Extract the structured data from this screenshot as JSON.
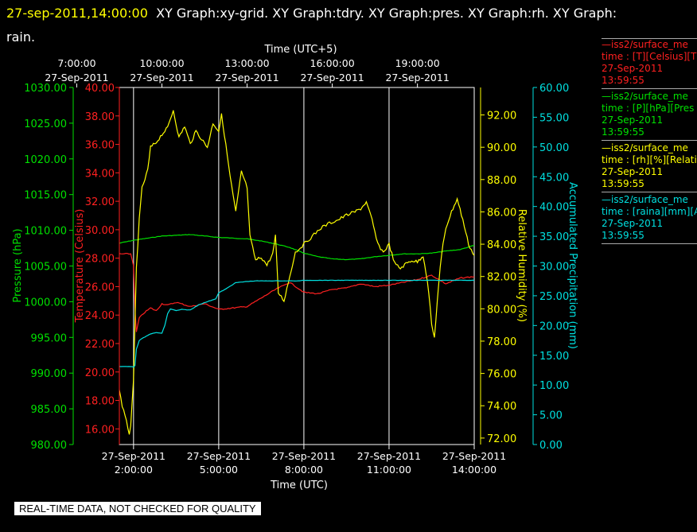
{
  "header": {
    "timestamp": "27-sep-2011,14:00:00",
    "graphs": "XY Graph:xy-grid.  XY Graph:tdry.  XY Graph:pres.  XY Graph:rh.  XY Graph:",
    "graphs_line2": "rain."
  },
  "legend": [
    {
      "line1": "—iss2/surface_me",
      "line2": "time : [T][Celsius][T",
      "date": "27-Sep-2011",
      "time": "13:59:55",
      "color": "#ff2020"
    },
    {
      "line1": "—iss2/surface_me",
      "line2": "time : [P][hPa][Pres",
      "date": "27-Sep-2011",
      "time": "13:59:55",
      "color": "#00e000"
    },
    {
      "line1": "—iss2/surface_me",
      "line2": "time : [rh][%][Relati",
      "date": "27-Sep-2011",
      "time": "13:59:55",
      "color": "#ffff00"
    },
    {
      "line1": "—iss2/surface_me",
      "line2": "time : [raina][mm][A",
      "date": "27-Sep-2011",
      "time": "13:59:55",
      "color": "#00e0e0"
    }
  ],
  "footer": "REAL-TIME DATA, NOT CHECKED FOR QUALITY",
  "chart_data": {
    "type": "line",
    "top_axis": {
      "label": "Time (UTC+5)",
      "ticks": [
        {
          "x": 5,
          "time": "7:00:00",
          "date": "27-Sep-2011"
        },
        {
          "x": 8,
          "time": "10:00:00",
          "date": "27-Sep-2011"
        },
        {
          "x": 11,
          "time": "13:00:00",
          "date": "27-Sep-2011"
        },
        {
          "x": 14,
          "time": "16:00:00",
          "date": "27-Sep-2011"
        },
        {
          "x": 17,
          "time": "19:00:00",
          "date": "27-Sep-2011"
        }
      ]
    },
    "bottom_axis": {
      "label": "Time (UTC)",
      "xlim": [
        1.5,
        14.0
      ],
      "ticks": [
        {
          "x": 2,
          "time": "2:00:00",
          "date": "27-Sep-2011"
        },
        {
          "x": 5,
          "time": "5:00:00",
          "date": "27-Sep-2011"
        },
        {
          "x": 8,
          "time": "8:00:00",
          "date": "27-Sep-2011"
        },
        {
          "x": 11,
          "time": "11:00:00",
          "date": "27-Sep-2011"
        },
        {
          "x": 14,
          "time": "14:00:00",
          "date": "27-Sep-2011"
        }
      ]
    },
    "axes": {
      "pressure": {
        "label": "Pressure (hPa)",
        "color": "#00e000",
        "ylim": [
          980,
          1030
        ],
        "ticks": [
          "980.00",
          "985.00",
          "990.00",
          "995.00",
          "1000.00",
          "1005.00",
          "1010.00",
          "1015.00",
          "1020.00",
          "1025.00",
          "1030.00"
        ]
      },
      "temperature": {
        "label": "Temperature (Celsius)",
        "color": "#ff2020",
        "ylim": [
          14.9,
          40
        ],
        "ticks": [
          "16.00",
          "18.00",
          "20.00",
          "22.00",
          "24.00",
          "26.00",
          "28.00",
          "30.00",
          "32.00",
          "34.00",
          "36.00",
          "38.00",
          "40.00"
        ]
      },
      "rh": {
        "label": "Relative Humidity (%)",
        "color": "#ffff00",
        "ylim": [
          71.6,
          93.7
        ],
        "ticks": [
          "72.00",
          "74.00",
          "76.00",
          "78.00",
          "80.00",
          "82.00",
          "84.00",
          "86.00",
          "88.00",
          "90.00",
          "92.00"
        ]
      },
      "rain": {
        "label": "Accumulated Precipitation (mm)",
        "color": "#00e0e0",
        "ylim": [
          0,
          60
        ],
        "ticks": [
          "0.00",
          "5.00",
          "10.00",
          "15.00",
          "20.00",
          "25.00",
          "30.00",
          "35.00",
          "40.00",
          "45.00",
          "50.00",
          "55.00",
          "60.00"
        ]
      }
    },
    "grid": true,
    "series": [
      {
        "name": "Pressure (hPa)",
        "axis": "pressure",
        "color": "#00e000",
        "x": [
          1.5,
          2.0,
          2.5,
          3.0,
          3.5,
          4.0,
          4.5,
          5.0,
          5.5,
          6.0,
          6.5,
          7.0,
          7.5,
          8.0,
          8.5,
          9.0,
          9.5,
          10.0,
          10.5,
          11.0,
          11.5,
          12.0,
          12.5,
          13.0,
          13.5,
          14.0
        ],
        "y": [
          1008.2,
          1008.6,
          1008.9,
          1009.2,
          1009.3,
          1009.4,
          1009.2,
          1009.0,
          1008.9,
          1008.8,
          1008.5,
          1008.1,
          1007.6,
          1006.8,
          1006.3,
          1006.0,
          1005.9,
          1006.0,
          1006.3,
          1006.5,
          1006.7,
          1006.7,
          1006.8,
          1007.1,
          1007.3,
          1007.9
        ]
      },
      {
        "name": "Temperature (Celsius)",
        "axis": "temperature",
        "color": "#ff2020",
        "x": [
          1.5,
          1.9,
          2.0,
          2.05,
          2.1,
          2.2,
          2.4,
          2.6,
          2.8,
          3.0,
          3.2,
          3.5,
          4.0,
          4.5,
          5.0,
          5.5,
          6.0,
          6.5,
          7.0,
          7.5,
          8.0,
          8.5,
          9.0,
          9.5,
          10.0,
          10.5,
          11.0,
          11.5,
          12.0,
          12.5,
          13.0,
          13.5,
          14.0
        ],
        "y": [
          28.3,
          28.3,
          27.5,
          24.5,
          22.8,
          23.8,
          24.2,
          24.5,
          24.3,
          24.8,
          24.7,
          24.9,
          24.6,
          24.8,
          24.4,
          24.5,
          24.6,
          25.2,
          25.8,
          26.3,
          25.6,
          25.5,
          25.8,
          25.9,
          26.2,
          26.0,
          26.1,
          26.3,
          26.5,
          26.8,
          26.2,
          26.6,
          26.7
        ]
      },
      {
        "name": "Relative Humidity (%)",
        "axis": "rh",
        "color": "#ffff00",
        "x": [
          1.5,
          1.6,
          1.75,
          1.85,
          1.9,
          2.0,
          2.05,
          2.1,
          2.2,
          2.3,
          2.4,
          2.5,
          2.6,
          2.8,
          3.0,
          3.2,
          3.4,
          3.6,
          3.8,
          4.0,
          4.2,
          4.4,
          4.6,
          4.8,
          5.0,
          5.1,
          5.2,
          5.4,
          5.6,
          5.8,
          6.0,
          6.1,
          6.3,
          6.5,
          6.7,
          6.9,
          7.0,
          7.1,
          7.3,
          7.5,
          7.7,
          8.0,
          8.3,
          8.6,
          8.9,
          9.2,
          9.5,
          9.8,
          10.0,
          10.2,
          10.4,
          10.6,
          10.8,
          11.0,
          11.2,
          11.4,
          11.6,
          11.8,
          12.0,
          12.2,
          12.3,
          12.4,
          12.5,
          12.6,
          12.7,
          12.8,
          12.9,
          13.0,
          13.2,
          13.4,
          13.6,
          13.8,
          14.0
        ],
        "y": [
          75.0,
          74.0,
          73.0,
          72.3,
          72.8,
          75.5,
          79.0,
          82.5,
          85.5,
          87.5,
          88.0,
          88.6,
          90.0,
          90.3,
          90.8,
          91.2,
          92.3,
          90.6,
          91.3,
          90.2,
          91.0,
          90.5,
          90.0,
          91.5,
          91.0,
          92.0,
          90.8,
          88.2,
          86.0,
          88.5,
          87.5,
          84.5,
          83.0,
          83.2,
          82.7,
          83.4,
          84.5,
          81.0,
          80.5,
          82.0,
          83.5,
          84.0,
          84.5,
          85.0,
          85.3,
          85.5,
          85.8,
          86.0,
          86.2,
          86.6,
          85.5,
          84.0,
          83.5,
          84.0,
          82.8,
          82.5,
          82.8,
          83.0,
          82.9,
          83.3,
          82.3,
          81.0,
          79.0,
          78.2,
          80.5,
          82.5,
          84.0,
          85.0,
          86.0,
          86.8,
          85.5,
          84.0,
          83.3
        ]
      },
      {
        "name": "Accumulated Precipitation (mm)",
        "axis": "rain",
        "color": "#00e0e0",
        "x": [
          1.5,
          1.95,
          2.0,
          2.05,
          2.1,
          2.2,
          2.3,
          2.45,
          2.6,
          2.8,
          3.0,
          3.1,
          3.2,
          3.3,
          3.5,
          3.7,
          4.0,
          4.3,
          4.6,
          4.9,
          5.0,
          5.2,
          5.4,
          5.6,
          5.8,
          6.0,
          6.3,
          6.6,
          6.9,
          7.2,
          7.5,
          7.8,
          8.0,
          8.5,
          9.0,
          9.5,
          10.0,
          10.5,
          11.0,
          11.5,
          12.0,
          12.5,
          13.0,
          13.5,
          14.0
        ],
        "y": [
          13.1,
          13.1,
          13.0,
          13.3,
          16.0,
          17.5,
          17.8,
          18.2,
          18.6,
          18.8,
          18.7,
          20.0,
          22.0,
          22.8,
          22.5,
          22.7,
          22.6,
          23.5,
          24.0,
          24.5,
          25.5,
          26.0,
          26.6,
          27.2,
          27.3,
          27.4,
          27.5,
          27.5,
          27.5,
          27.5,
          27.5,
          27.5,
          27.6,
          27.6,
          27.6,
          27.6,
          27.6,
          27.6,
          27.6,
          27.6,
          27.6,
          27.6,
          27.6,
          27.6,
          27.6
        ]
      }
    ]
  }
}
